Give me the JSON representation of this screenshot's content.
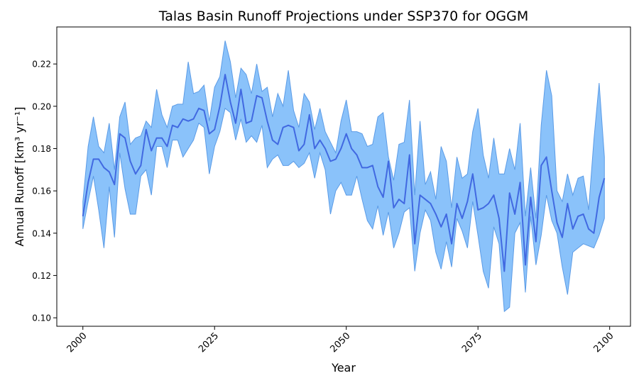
{
  "chart_data": {
    "type": "band-line",
    "title": "Talas Basin Runoff Projections under SSP370 for OGGM",
    "xlabel": "Year",
    "ylabel": "Annual Runoff [km³ yr⁻¹]",
    "x": [
      2000,
      2001,
      2002,
      2003,
      2004,
      2005,
      2006,
      2007,
      2008,
      2009,
      2010,
      2011,
      2012,
      2013,
      2014,
      2015,
      2016,
      2017,
      2018,
      2019,
      2020,
      2021,
      2022,
      2023,
      2024,
      2025,
      2026,
      2027,
      2028,
      2029,
      2030,
      2031,
      2032,
      2033,
      2034,
      2035,
      2036,
      2037,
      2038,
      2039,
      2040,
      2041,
      2042,
      2043,
      2044,
      2045,
      2046,
      2047,
      2048,
      2049,
      2050,
      2051,
      2052,
      2053,
      2054,
      2055,
      2056,
      2057,
      2058,
      2059,
      2060,
      2061,
      2062,
      2063,
      2064,
      2065,
      2066,
      2067,
      2068,
      2069,
      2070,
      2071,
      2072,
      2073,
      2074,
      2075,
      2076,
      2077,
      2078,
      2079,
      2080,
      2081,
      2082,
      2083,
      2084,
      2085,
      2086,
      2087,
      2088,
      2089,
      2090,
      2091,
      2092,
      2093,
      2094,
      2095,
      2096,
      2097,
      2098,
      2099
    ],
    "line": {
      "color": "#4169e1",
      "values": [
        0.148,
        0.164,
        0.175,
        0.175,
        0.171,
        0.169,
        0.163,
        0.187,
        0.185,
        0.174,
        0.168,
        0.172,
        0.189,
        0.179,
        0.185,
        0.185,
        0.181,
        0.191,
        0.19,
        0.194,
        0.193,
        0.194,
        0.199,
        0.198,
        0.187,
        0.189,
        0.2,
        0.215,
        0.202,
        0.192,
        0.208,
        0.192,
        0.193,
        0.205,
        0.204,
        0.193,
        0.184,
        0.182,
        0.19,
        0.191,
        0.19,
        0.179,
        0.182,
        0.196,
        0.18,
        0.184,
        0.18,
        0.174,
        0.175,
        0.18,
        0.187,
        0.18,
        0.177,
        0.171,
        0.171,
        0.172,
        0.162,
        0.157,
        0.174,
        0.152,
        0.156,
        0.154,
        0.177,
        0.135,
        0.158,
        0.156,
        0.154,
        0.149,
        0.143,
        0.149,
        0.135,
        0.154,
        0.147,
        0.155,
        0.168,
        0.151,
        0.152,
        0.154,
        0.158,
        0.147,
        0.122,
        0.159,
        0.149,
        0.164,
        0.125,
        0.157,
        0.136,
        0.172,
        0.176,
        0.16,
        0.145,
        0.138,
        0.154,
        0.142,
        0.148,
        0.149,
        0.142,
        0.14,
        0.157,
        0.166
      ]
    },
    "band": {
      "color": "#8ac2fa",
      "edge_color": "#5b9be6",
      "upper": [
        0.155,
        0.181,
        0.195,
        0.181,
        0.178,
        0.192,
        0.17,
        0.195,
        0.202,
        0.182,
        0.185,
        0.186,
        0.193,
        0.19,
        0.208,
        0.196,
        0.19,
        0.2,
        0.201,
        0.201,
        0.221,
        0.206,
        0.207,
        0.21,
        0.193,
        0.209,
        0.214,
        0.231,
        0.221,
        0.204,
        0.218,
        0.215,
        0.206,
        0.22,
        0.207,
        0.209,
        0.195,
        0.206,
        0.2,
        0.217,
        0.198,
        0.19,
        0.206,
        0.202,
        0.189,
        0.199,
        0.188,
        0.183,
        0.178,
        0.193,
        0.203,
        0.188,
        0.188,
        0.187,
        0.181,
        0.182,
        0.195,
        0.197,
        0.176,
        0.165,
        0.182,
        0.183,
        0.203,
        0.158,
        0.193,
        0.163,
        0.169,
        0.156,
        0.181,
        0.174,
        0.152,
        0.176,
        0.166,
        0.168,
        0.188,
        0.199,
        0.177,
        0.166,
        0.185,
        0.168,
        0.168,
        0.18,
        0.17,
        0.192,
        0.148,
        0.171,
        0.147,
        0.191,
        0.217,
        0.205,
        0.16,
        0.155,
        0.168,
        0.158,
        0.166,
        0.167,
        0.151,
        0.184,
        0.211,
        0.176
      ],
      "lower": [
        0.142,
        0.155,
        0.167,
        0.151,
        0.133,
        0.162,
        0.138,
        0.178,
        0.161,
        0.149,
        0.149,
        0.167,
        0.17,
        0.158,
        0.181,
        0.181,
        0.171,
        0.184,
        0.184,
        0.176,
        0.18,
        0.184,
        0.192,
        0.19,
        0.168,
        0.181,
        0.188,
        0.199,
        0.197,
        0.184,
        0.194,
        0.183,
        0.186,
        0.183,
        0.191,
        0.171,
        0.175,
        0.177,
        0.172,
        0.172,
        0.174,
        0.171,
        0.173,
        0.178,
        0.166,
        0.178,
        0.17,
        0.149,
        0.16,
        0.164,
        0.158,
        0.158,
        0.167,
        0.156,
        0.146,
        0.142,
        0.153,
        0.139,
        0.15,
        0.133,
        0.14,
        0.15,
        0.152,
        0.122,
        0.14,
        0.151,
        0.146,
        0.131,
        0.123,
        0.136,
        0.124,
        0.147,
        0.141,
        0.133,
        0.155,
        0.139,
        0.122,
        0.114,
        0.143,
        0.135,
        0.103,
        0.105,
        0.14,
        0.145,
        0.112,
        0.148,
        0.125,
        0.139,
        0.158,
        0.146,
        0.14,
        0.124,
        0.111,
        0.131,
        0.133,
        0.135,
        0.134,
        0.133,
        0.139,
        0.147
      ]
    },
    "xlim": [
      1995.05,
      2103.95
    ],
    "ylim": [
      0.096,
      0.2375
    ],
    "xticks": [
      2000,
      2025,
      2050,
      2075,
      2100
    ],
    "yticks": [
      {
        "value": 0.1,
        "label": "0.10"
      },
      0.12,
      0.14,
      0.16,
      0.18,
      {
        "value": 0.2,
        "label": "0.20"
      },
      0.22
    ],
    "grid": false
  }
}
